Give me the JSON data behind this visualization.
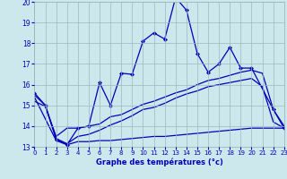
{
  "title": "Graphe des températures (°c)",
  "background_color": "#cce8ec",
  "grid_color": "#9ab8be",
  "line_color": "#0000bb",
  "xlim": [
    0,
    23
  ],
  "ylim": [
    13,
    20
  ],
  "yticks": [
    13,
    14,
    15,
    16,
    17,
    18,
    19,
    20
  ],
  "xticks": [
    0,
    1,
    2,
    3,
    4,
    5,
    6,
    7,
    8,
    9,
    10,
    11,
    12,
    13,
    14,
    15,
    16,
    17,
    18,
    19,
    20,
    21,
    22,
    23
  ],
  "line1_x": [
    0,
    1,
    2,
    3,
    4,
    5,
    6,
    7,
    8,
    9,
    10,
    11,
    12,
    13,
    14,
    15,
    16,
    17,
    18,
    19,
    20,
    22,
    23
  ],
  "line1_y": [
    15.6,
    15.0,
    13.35,
    13.1,
    13.9,
    14.0,
    16.1,
    15.0,
    16.55,
    16.5,
    18.1,
    18.5,
    18.2,
    20.2,
    19.6,
    17.5,
    16.6,
    17.0,
    17.8,
    16.8,
    16.8,
    14.8,
    13.9
  ],
  "line2_x": [
    0,
    1,
    2,
    3,
    4,
    5,
    6,
    7,
    8,
    9,
    10,
    11,
    12,
    13,
    14,
    15,
    16,
    17,
    18,
    19,
    20,
    21,
    22,
    23
  ],
  "line2_y": [
    15.2,
    14.95,
    13.5,
    13.9,
    13.9,
    14.0,
    14.1,
    14.45,
    14.55,
    14.8,
    15.05,
    15.2,
    15.4,
    15.6,
    15.75,
    16.0,
    16.2,
    16.3,
    16.45,
    16.6,
    16.7,
    16.55,
    14.8,
    14.0
  ],
  "line3_x": [
    0,
    1,
    2,
    3,
    4,
    5,
    6,
    7,
    8,
    9,
    10,
    11,
    12,
    13,
    14,
    15,
    16,
    17,
    18,
    19,
    20,
    21,
    22,
    23
  ],
  "line3_y": [
    15.5,
    15.0,
    13.4,
    13.15,
    13.5,
    13.6,
    13.8,
    14.05,
    14.25,
    14.5,
    14.8,
    14.9,
    15.1,
    15.35,
    15.55,
    15.7,
    15.9,
    16.0,
    16.1,
    16.2,
    16.3,
    15.9,
    14.2,
    13.9
  ],
  "line4_x": [
    0,
    2,
    3,
    4,
    5,
    6,
    7,
    8,
    9,
    10,
    11,
    12,
    13,
    14,
    15,
    16,
    17,
    18,
    19,
    20,
    21,
    22,
    23
  ],
  "line4_y": [
    15.4,
    13.3,
    13.1,
    13.25,
    13.25,
    13.3,
    13.3,
    13.35,
    13.4,
    13.45,
    13.5,
    13.5,
    13.55,
    13.6,
    13.65,
    13.7,
    13.75,
    13.8,
    13.85,
    13.9,
    13.9,
    13.9,
    13.9
  ]
}
